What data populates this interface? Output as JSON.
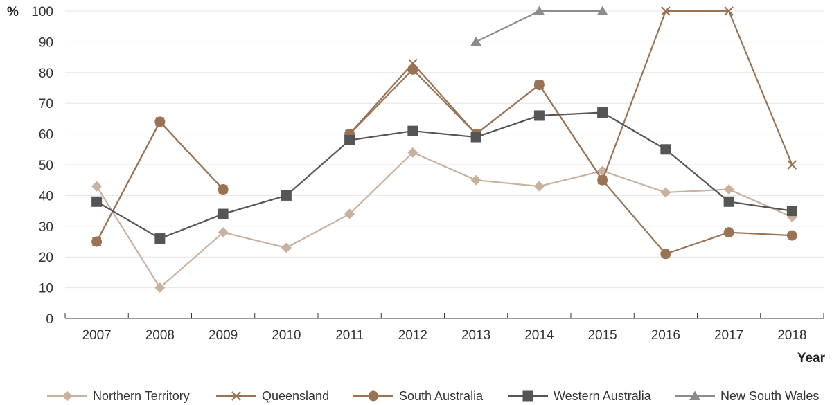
{
  "chart_data": {
    "type": "line",
    "xlabel": "Year",
    "ylabel": "%",
    "ylim": [
      0,
      100
    ],
    "yticks": [
      0,
      10,
      20,
      30,
      40,
      50,
      60,
      70,
      80,
      90,
      100
    ],
    "categories": [
      "2007",
      "2008",
      "2009",
      "2010",
      "2011",
      "2012",
      "2013",
      "2014",
      "2015",
      "2016",
      "2017",
      "2018"
    ],
    "grid": "horizontal",
    "legend_position": "bottom",
    "series": [
      {
        "name": "Northern Territory",
        "color": "#c9b19f",
        "marker": "diamond",
        "values": [
          43,
          10,
          28,
          23,
          34,
          54,
          45,
          43,
          48,
          41,
          42,
          33
        ]
      },
      {
        "name": "Queensland",
        "color": "#9a7254",
        "marker": "x",
        "values": [
          25,
          64,
          42,
          null,
          60,
          83,
          60,
          76,
          45,
          100,
          100,
          50
        ]
      },
      {
        "name": "South Australia",
        "color": "#9a7254",
        "marker": "circle",
        "values": [
          25,
          64,
          42,
          null,
          60,
          81,
          60,
          76,
          45,
          21,
          28,
          27
        ]
      },
      {
        "name": "Western Australia",
        "color": "#555555",
        "marker": "square",
        "values": [
          38,
          26,
          34,
          40,
          58,
          61,
          59,
          66,
          67,
          55,
          38,
          35
        ]
      },
      {
        "name": "New South Wales",
        "color": "#8c8c8c",
        "marker": "triangle",
        "values": [
          null,
          null,
          null,
          null,
          null,
          null,
          90,
          100,
          100,
          null,
          null,
          null
        ]
      }
    ]
  }
}
